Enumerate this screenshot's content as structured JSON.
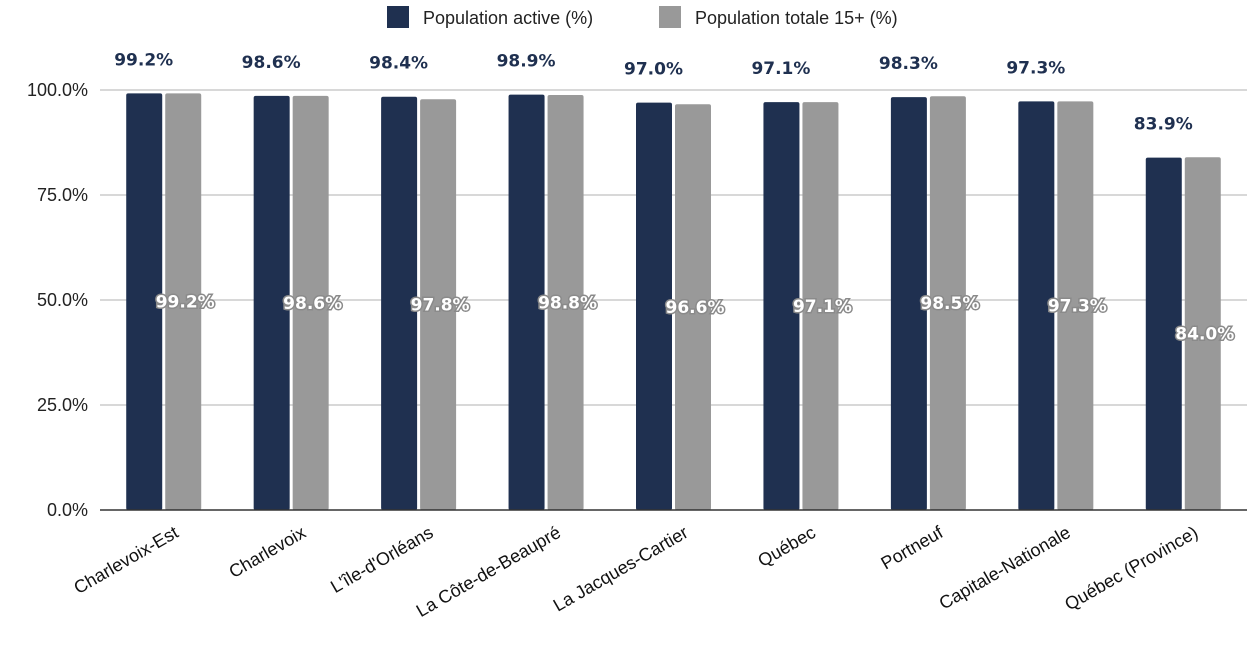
{
  "chart_data": {
    "type": "bar",
    "categories": [
      "Charlevoix-Est",
      "Charlevoix",
      "L'île-d'Orléans",
      "La Côte-de-Beaupré",
      "La Jacques-Cartier",
      "Québec",
      "Portneuf",
      "Capitale-Nationale",
      "Québec (Province)"
    ],
    "series": [
      {
        "name": "Population active (%)",
        "values": [
          99.2,
          98.6,
          98.4,
          98.9,
          97.0,
          97.1,
          98.3,
          97.3,
          83.9
        ],
        "labels": [
          "99.2%",
          "98.6%",
          "98.4%",
          "98.9%",
          "97.0%",
          "97.1%",
          "98.3%",
          "97.3%",
          "83.9%"
        ],
        "color": "#1f3050"
      },
      {
        "name": "Population totale 15+ (%)",
        "values": [
          99.2,
          98.6,
          97.8,
          98.8,
          96.6,
          97.1,
          98.5,
          97.3,
          84.0
        ],
        "labels": [
          "99.2%",
          "98.6%",
          "97.8%",
          "98.8%",
          "96.6%",
          "97.1%",
          "98.5%",
          "97.3%",
          "84.0%"
        ],
        "color": "#999999"
      }
    ],
    "yticks": [
      "0.0%",
      "25.0%",
      "50.0%",
      "75.0%",
      "100.0%"
    ],
    "ylim": [
      0,
      100
    ],
    "grid": true,
    "legend": "top-center",
    "title": "",
    "xlabel": "",
    "ylabel": ""
  }
}
